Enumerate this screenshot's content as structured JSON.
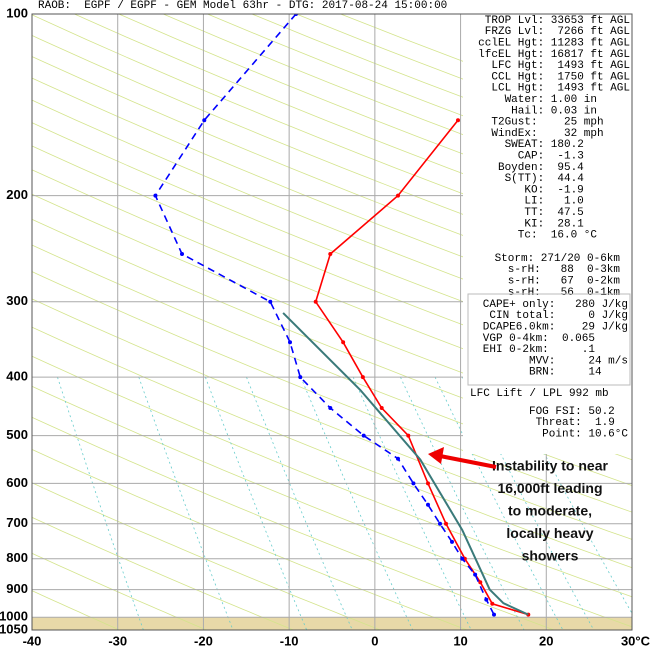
{
  "chart_data": {
    "type": "skewt",
    "title": "RAOB:  EGPF / EGPF - GEM Model 63hr - DTG: 2017-08-24 15:00:00",
    "ylim": [
      100,
      1050
    ],
    "yticks": [
      100,
      200,
      300,
      400,
      500,
      600,
      700,
      800,
      900,
      1000,
      1050
    ],
    "log_y": true,
    "xlim": [
      -40,
      30
    ],
    "xticks": [
      -40,
      -30,
      -20,
      -10,
      0,
      10,
      20,
      {
        "value": 30,
        "label": "30°C"
      }
    ],
    "grid": true,
    "series": [
      {
        "name": "Temperature",
        "color": "#ff0000",
        "values": [
          150,
          200,
          250,
          300,
          350,
          400,
          450,
          500,
          600,
          700,
          800,
          875,
          950,
          990
        ],
        "x": [
          9.7,
          2.7,
          -5.2,
          -6.9,
          -3.7,
          -1.4,
          0.8,
          3.9,
          6.2,
          8.3,
          10.5,
          12.3,
          13.7,
          17.9
        ]
      },
      {
        "name": "Dewpoint",
        "color": "#0000ff",
        "values": [
          100,
          150,
          200,
          250,
          300,
          350,
          400,
          450,
          500,
          546,
          600,
          651,
          700,
          750,
          800,
          850,
          935,
          990
        ],
        "x": [
          -9.2,
          -19.9,
          -25.6,
          -22.5,
          -12.2,
          -9.9,
          -8.7,
          -5.2,
          -1.3,
          2.7,
          4.5,
          6.2,
          7.6,
          9.0,
          10.2,
          11.7,
          13.0,
          13.9
        ]
      },
      {
        "name": "Parcel",
        "color": "#3a7a7a",
        "values": [
          313,
          420,
          548,
          717,
          900,
          948,
          990
        ],
        "x": [
          -10.7,
          -1.7,
          5.3,
          10.2,
          13.4,
          15.0,
          17.9
        ]
      }
    ],
    "info_lines": [
      "TROP Lvl: 33653 ft AGL",
      "FRZG Lvl:  7266 ft AGL",
      "cclEL Hgt: 11283 ft AGL",
      "lfcEL Hgt: 16817 ft AGL",
      "LFC Hgt:  1493 ft AGL",
      "CCL Hgt:  1750 ft AGL",
      "LCL Hgt:  1493 ft AGL",
      "Water: 1.00 in     ",
      "Hail: 0.03 in     ",
      "T2Gust:    25 mph    ",
      "WindEx:    32 mph    ",
      "SWEAT: 180.2       ",
      "CAP:  -1.3       ",
      "Boyden:  95.4       ",
      "S(TT):  44.4       ",
      "KO:  -1.9       ",
      "LI:   1.0       ",
      "TT:  47.5       ",
      "KI:  28.1       ",
      "Tc:  16.0 °C     "
    ],
    "storm_lines": [
      "Storm: 271/20 0-6km",
      "s-rH:   88  0-3km",
      "s-rH:   67  0-2km",
      "s-rH:   56  0-1km"
    ],
    "cape_lines": [
      "CAPE+ only:   280 J/kg",
      "CIN total:     0 J/kg",
      "DCAPE6.0km:    29 J/kg",
      "VGP 0-4km:  0.065     ",
      "EHI 0-2km:     .1     ",
      "MVV:     24 m/s",
      "BRN:     14    "
    ],
    "lift_label": "LFC Lift / LPL 992 mb",
    "fog_lines": [
      "FOG FSI: 50.2  ",
      "Threat:  1.9  ",
      "Point: 10.6°C"
    ],
    "annotation": [
      "Instability to near",
      "16,000ft leading",
      "to moderate,",
      "locally heavy",
      "showers"
    ]
  }
}
